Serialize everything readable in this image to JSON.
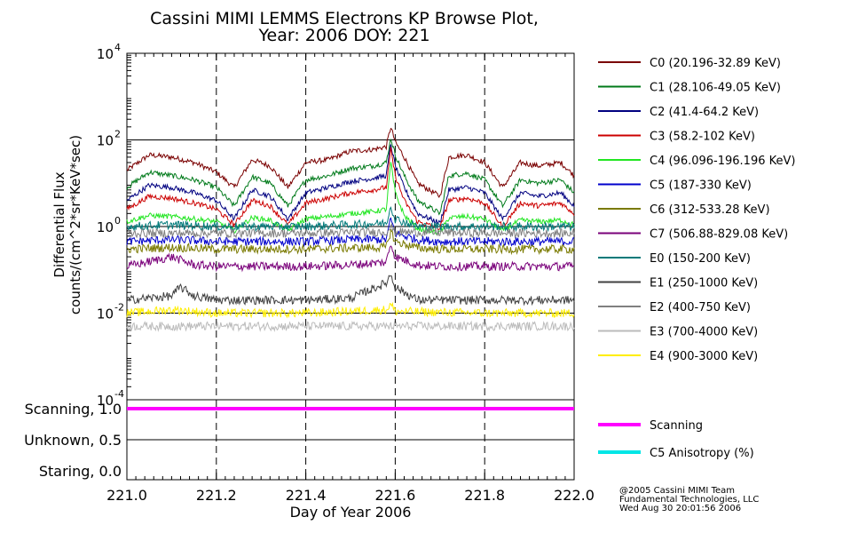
{
  "chart_data": {
    "type": "line",
    "title_line1": "Cassini MIMI LEMMS Electrons KP Browse Plot,",
    "title_line2": "Year: 2006 DOY: 221",
    "xlabel": "Day of Year 2006",
    "ylabel_line1": "Differential Flux",
    "ylabel_line2": "counts/(cm^2*sr*KeV*sec)",
    "xlim": [
      221.0,
      222.0
    ],
    "x_ticks": [
      "221.0",
      "221.2",
      "221.4",
      "221.6",
      "221.8",
      "222.0"
    ],
    "y_scale": "log",
    "ylim": [
      0.0001,
      10000
    ],
    "y_ticks": [
      {
        "base": "10",
        "exp": "4"
      },
      {
        "base": "10",
        "exp": "2"
      },
      {
        "base": "10",
        "exp": "0"
      },
      {
        "base": "10",
        "exp": "-2"
      },
      {
        "base": "10",
        "exp": "-4"
      }
    ],
    "grid_dashed_x": [
      221.2,
      221.4,
      221.6,
      221.8
    ],
    "reference_lines_y": [
      100,
      1,
      0.01
    ],
    "legend_position": "right",
    "series": [
      {
        "name": "C0 (20.196-32.89 KeV)",
        "color": "#7a0000",
        "values": [
          [
            221.0,
            20
          ],
          [
            221.05,
            45
          ],
          [
            221.1,
            40
          ],
          [
            221.15,
            30
          ],
          [
            221.2,
            18
          ],
          [
            221.24,
            8
          ],
          [
            221.28,
            35
          ],
          [
            221.32,
            25
          ],
          [
            221.36,
            8
          ],
          [
            221.4,
            30
          ],
          [
            221.45,
            35
          ],
          [
            221.5,
            55
          ],
          [
            221.55,
            60
          ],
          [
            221.58,
            70
          ],
          [
            221.59,
            200
          ],
          [
            221.6,
            90
          ],
          [
            221.62,
            40
          ],
          [
            221.65,
            10
          ],
          [
            221.7,
            5
          ],
          [
            221.72,
            40
          ],
          [
            221.76,
            45
          ],
          [
            221.8,
            30
          ],
          [
            221.84,
            8
          ],
          [
            221.88,
            30
          ],
          [
            221.92,
            25
          ],
          [
            221.97,
            30
          ],
          [
            222.0,
            15
          ]
        ]
      },
      {
        "name": "C1 (28.106-49.05 KeV)",
        "color": "#007a1a",
        "values": [
          [
            221.0,
            8
          ],
          [
            221.05,
            18
          ],
          [
            221.1,
            15
          ],
          [
            221.15,
            12
          ],
          [
            221.2,
            8
          ],
          [
            221.24,
            3
          ],
          [
            221.28,
            14
          ],
          [
            221.32,
            10
          ],
          [
            221.36,
            3
          ],
          [
            221.4,
            12
          ],
          [
            221.45,
            15
          ],
          [
            221.5,
            22
          ],
          [
            221.55,
            25
          ],
          [
            221.58,
            30
          ],
          [
            221.59,
            110
          ],
          [
            221.6,
            45
          ],
          [
            221.62,
            15
          ],
          [
            221.65,
            4
          ],
          [
            221.7,
            2
          ],
          [
            221.72,
            15
          ],
          [
            221.76,
            17
          ],
          [
            221.8,
            12
          ],
          [
            221.84,
            3
          ],
          [
            221.88,
            12
          ],
          [
            221.92,
            10
          ],
          [
            221.97,
            12
          ],
          [
            222.0,
            6
          ]
        ]
      },
      {
        "name": "C2 (41.4-64.2 KeV)",
        "color": "#000080",
        "values": [
          [
            221.0,
            4
          ],
          [
            221.05,
            9
          ],
          [
            221.1,
            8
          ],
          [
            221.15,
            6
          ],
          [
            221.2,
            4
          ],
          [
            221.24,
            1.5
          ],
          [
            221.28,
            7
          ],
          [
            221.32,
            5
          ],
          [
            221.36,
            1.5
          ],
          [
            221.4,
            6
          ],
          [
            221.45,
            8
          ],
          [
            221.5,
            11
          ],
          [
            221.55,
            13
          ],
          [
            221.58,
            15
          ],
          [
            221.59,
            80
          ],
          [
            221.6,
            25
          ],
          [
            221.62,
            8
          ],
          [
            221.65,
            2
          ],
          [
            221.7,
            1.2
          ],
          [
            221.72,
            7
          ],
          [
            221.76,
            8
          ],
          [
            221.8,
            6
          ],
          [
            221.84,
            1.5
          ],
          [
            221.88,
            6
          ],
          [
            221.92,
            5
          ],
          [
            221.97,
            6
          ],
          [
            222.0,
            3
          ]
        ]
      },
      {
        "name": "C3 (58.2-102 KeV)",
        "color": "#cc0000",
        "values": [
          [
            221.0,
            2.5
          ],
          [
            221.05,
            5
          ],
          [
            221.1,
            4.5
          ],
          [
            221.15,
            3.5
          ],
          [
            221.2,
            2.5
          ],
          [
            221.24,
            1.1
          ],
          [
            221.28,
            4
          ],
          [
            221.32,
            3
          ],
          [
            221.36,
            1.1
          ],
          [
            221.4,
            3.5
          ],
          [
            221.45,
            4.5
          ],
          [
            221.5,
            6
          ],
          [
            221.55,
            7
          ],
          [
            221.58,
            8
          ],
          [
            221.59,
            60
          ],
          [
            221.6,
            15
          ],
          [
            221.62,
            4
          ],
          [
            221.65,
            1.3
          ],
          [
            221.7,
            0.9
          ],
          [
            221.72,
            4
          ],
          [
            221.76,
            4.5
          ],
          [
            221.8,
            3.5
          ],
          [
            221.84,
            1
          ],
          [
            221.88,
            3.5
          ],
          [
            221.92,
            3
          ],
          [
            221.97,
            3.5
          ],
          [
            222.0,
            2
          ]
        ]
      },
      {
        "name": "C4 (96.096-196.196 KeV)",
        "color": "#22e622",
        "values": [
          [
            221.0,
            1.3
          ],
          [
            221.05,
            1.8
          ],
          [
            221.1,
            1.7
          ],
          [
            221.15,
            1.5
          ],
          [
            221.2,
            1.3
          ],
          [
            221.24,
            0.8
          ],
          [
            221.28,
            1.6
          ],
          [
            221.32,
            1.4
          ],
          [
            221.36,
            0.8
          ],
          [
            221.4,
            1.5
          ],
          [
            221.45,
            1.7
          ],
          [
            221.5,
            2
          ],
          [
            221.55,
            2.2
          ],
          [
            221.58,
            2.5
          ],
          [
            221.59,
            30
          ],
          [
            221.6,
            6
          ],
          [
            221.62,
            1.8
          ],
          [
            221.65,
            0.9
          ],
          [
            221.7,
            0.7
          ],
          [
            221.72,
            1.6
          ],
          [
            221.76,
            1.7
          ],
          [
            221.8,
            1.5
          ],
          [
            221.84,
            0.8
          ],
          [
            221.88,
            1.4
          ],
          [
            221.92,
            1.3
          ],
          [
            221.97,
            1.4
          ],
          [
            222.0,
            1.1
          ]
        ]
      },
      {
        "name": "C5 (187-330 KeV)",
        "color": "#0000cc",
        "values": [
          [
            221.0,
            0.45
          ],
          [
            221.1,
            0.5
          ],
          [
            221.2,
            0.45
          ],
          [
            221.3,
            0.45
          ],
          [
            221.4,
            0.45
          ],
          [
            221.5,
            0.5
          ],
          [
            221.58,
            0.5
          ],
          [
            221.59,
            1.5
          ],
          [
            221.6,
            0.7
          ],
          [
            221.65,
            0.5
          ],
          [
            221.7,
            0.45
          ],
          [
            221.8,
            0.45
          ],
          [
            221.9,
            0.45
          ],
          [
            222.0,
            0.45
          ]
        ]
      },
      {
        "name": "C6 (312-533.28 KeV)",
        "color": "#7a7a00",
        "values": [
          [
            221.0,
            0.3
          ],
          [
            221.1,
            0.33
          ],
          [
            221.2,
            0.3
          ],
          [
            221.3,
            0.3
          ],
          [
            221.4,
            0.3
          ],
          [
            221.5,
            0.32
          ],
          [
            221.58,
            0.33
          ],
          [
            221.59,
            0.8
          ],
          [
            221.6,
            0.45
          ],
          [
            221.65,
            0.32
          ],
          [
            221.7,
            0.3
          ],
          [
            221.8,
            0.3
          ],
          [
            221.9,
            0.3
          ],
          [
            222.0,
            0.3
          ]
        ]
      },
      {
        "name": "C7 (506.88-829.08 KeV)",
        "color": "#7a007a",
        "values": [
          [
            221.0,
            0.12
          ],
          [
            221.1,
            0.2
          ],
          [
            221.15,
            0.13
          ],
          [
            221.2,
            0.12
          ],
          [
            221.3,
            0.12
          ],
          [
            221.4,
            0.12
          ],
          [
            221.5,
            0.13
          ],
          [
            221.58,
            0.15
          ],
          [
            221.59,
            0.4
          ],
          [
            221.6,
            0.2
          ],
          [
            221.65,
            0.13
          ],
          [
            221.7,
            0.12
          ],
          [
            221.8,
            0.12
          ],
          [
            221.9,
            0.12
          ],
          [
            222.0,
            0.12
          ]
        ]
      },
      {
        "name": "E0 (150-200 KeV)",
        "color": "#007a7a",
        "values": [
          [
            221.0,
            1
          ],
          [
            221.1,
            1.1
          ],
          [
            221.2,
            1
          ],
          [
            221.3,
            1
          ],
          [
            221.4,
            1
          ],
          [
            221.5,
            1.1
          ],
          [
            221.58,
            1.2
          ],
          [
            221.59,
            3
          ],
          [
            221.6,
            1.5
          ],
          [
            221.65,
            1
          ],
          [
            221.7,
            1
          ],
          [
            221.8,
            1
          ],
          [
            221.9,
            1
          ],
          [
            222.0,
            1
          ]
        ]
      },
      {
        "name": "E1 (250-1000 KeV)",
        "color": "#404040",
        "values": [
          [
            221.0,
            0.02
          ],
          [
            221.1,
            0.025
          ],
          [
            221.12,
            0.04
          ],
          [
            221.15,
            0.025
          ],
          [
            221.2,
            0.02
          ],
          [
            221.3,
            0.02
          ],
          [
            221.4,
            0.02
          ],
          [
            221.5,
            0.022
          ],
          [
            221.58,
            0.05
          ],
          [
            221.59,
            0.08
          ],
          [
            221.6,
            0.04
          ],
          [
            221.65,
            0.02
          ],
          [
            221.7,
            0.02
          ],
          [
            221.8,
            0.02
          ],
          [
            221.9,
            0.02
          ],
          [
            222.0,
            0.02
          ]
        ]
      },
      {
        "name": "E2 (400-750 KeV)",
        "color": "#808080",
        "values": [
          [
            221.0,
            0.7
          ],
          [
            221.2,
            0.7
          ],
          [
            221.4,
            0.7
          ],
          [
            221.58,
            0.75
          ],
          [
            221.59,
            1
          ],
          [
            221.6,
            0.75
          ],
          [
            221.8,
            0.7
          ],
          [
            222.0,
            0.7
          ]
        ]
      },
      {
        "name": "E3 (700-4000 KeV)",
        "color": "#bbbbbb",
        "values": [
          [
            221.0,
            0.005
          ],
          [
            221.2,
            0.005
          ],
          [
            221.4,
            0.005
          ],
          [
            221.6,
            0.005
          ],
          [
            221.8,
            0.005
          ],
          [
            222.0,
            0.005
          ]
        ]
      },
      {
        "name": "E4 (900-3000 KeV)",
        "color": "#ffee00",
        "values": [
          [
            221.0,
            0.01
          ],
          [
            221.1,
            0.012
          ],
          [
            221.2,
            0.01
          ],
          [
            221.4,
            0.01
          ],
          [
            221.58,
            0.012
          ],
          [
            221.59,
            0.016
          ],
          [
            221.6,
            0.011
          ],
          [
            221.8,
            0.01
          ],
          [
            222.0,
            0.01
          ]
        ]
      }
    ],
    "scan_panel": {
      "y_tick_labels": [
        "Scanning, 1.0",
        "Unknown, 0.5",
        "Staring, 0.0"
      ],
      "y_tick_values": [
        1.0,
        0.5,
        0.0
      ],
      "scanning_value": 1.0,
      "series": [
        {
          "name": "Scanning",
          "color": "#ff00ff"
        },
        {
          "name": "C5 Anisotropy (%)",
          "color": "#00e6e6"
        }
      ]
    }
  },
  "credits": {
    "line1": "@2005 Cassini MIMI Team",
    "line2": "Fundamental Technologies, LLC",
    "line3": "Wed Aug 30 20:01:56 2006"
  }
}
